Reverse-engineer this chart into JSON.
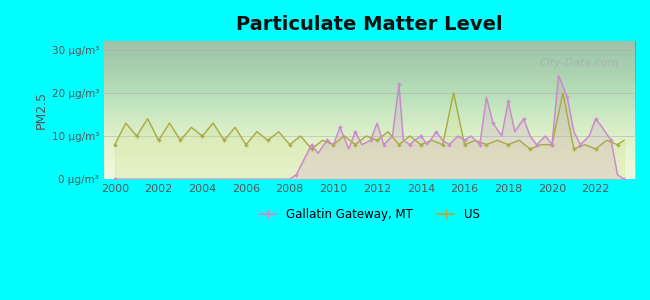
{
  "title": "Particulate Matter Level",
  "ylabel": "PM2.5",
  "background_color": "#00ffff",
  "plot_bg_top": "#e8f5e9",
  "plot_bg_bottom": "#f0f8e8",
  "ylim": [
    0,
    32
  ],
  "yticks": [
    0,
    10,
    20,
    30
  ],
  "ytick_labels": [
    "0 μg/m³",
    "10 μg/m³",
    "20 μg/m³",
    "30 μg/m³"
  ],
  "xlim": [
    1999.5,
    2023.8
  ],
  "xticks": [
    2000,
    2002,
    2004,
    2006,
    2008,
    2010,
    2012,
    2014,
    2016,
    2018,
    2020,
    2022
  ],
  "gallatin_color": "#cc88cc",
  "us_color": "#aaaa44",
  "watermark": "City-Data.com",
  "legend_gallatin": "Gallatin Gateway, MT",
  "legend_us": "US",
  "us_data": {
    "years": [
      2000,
      2000.5,
      2001,
      2001.5,
      2002,
      2002.5,
      2003,
      2003.5,
      2004,
      2004.5,
      2005,
      2005.5,
      2006,
      2006.5,
      2007,
      2007.5,
      2008,
      2008.5,
      2009,
      2009.5,
      2010,
      2010.5,
      2011,
      2011.5,
      2012,
      2012.5,
      2013,
      2013.5,
      2014,
      2014.5,
      2015,
      2015.5,
      2016,
      2016.5,
      2017,
      2017.5,
      2018,
      2018.5,
      2019,
      2019.5,
      2020,
      2020.5,
      2021,
      2021.5,
      2022,
      2022.5,
      2023,
      2023.3
    ],
    "values": [
      8,
      13,
      10,
      14,
      9,
      13,
      9,
      12,
      10,
      13,
      9,
      12,
      8,
      11,
      9,
      11,
      8,
      10,
      7,
      9,
      8,
      10,
      8,
      10,
      9,
      11,
      8,
      10,
      8,
      9,
      8,
      20,
      8,
      9,
      8,
      9,
      8,
      9,
      7,
      8,
      8,
      20,
      7,
      8,
      7,
      9,
      8,
      9
    ]
  },
  "gallatin_data": {
    "years": [
      2000,
      2008,
      2008.3,
      2008.7,
      2009,
      2009.3,
      2009.7,
      2010,
      2010.3,
      2010.7,
      2011,
      2011.3,
      2011.7,
      2012,
      2012.3,
      2012.7,
      2013,
      2013.2,
      2013.5,
      2013.7,
      2014,
      2014.3,
      2014.7,
      2015,
      2015.3,
      2015.7,
      2016,
      2016.3,
      2016.7,
      2017,
      2017.3,
      2017.7,
      2018,
      2018.3,
      2018.7,
      2019,
      2019.3,
      2019.7,
      2020,
      2020.3,
      2020.7,
      2021,
      2021.3,
      2021.7,
      2022,
      2022.3,
      2022.7,
      2023,
      2023.3
    ],
    "values": [
      0,
      0,
      1,
      5,
      8,
      6,
      9,
      8,
      12,
      7,
      11,
      8,
      9,
      13,
      8,
      10,
      22,
      9,
      8,
      9,
      10,
      8,
      11,
      9,
      8,
      10,
      9,
      10,
      8,
      19,
      13,
      10,
      18,
      11,
      14,
      10,
      8,
      10,
      8,
      24,
      19,
      11,
      8,
      10,
      14,
      12,
      9,
      1,
      0
    ]
  }
}
